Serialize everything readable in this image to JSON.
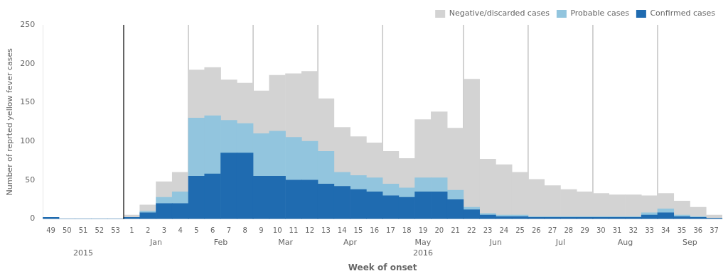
{
  "chart_data": {
    "type": "bar",
    "stacked": true,
    "categories": [
      "49",
      "50",
      "51",
      "52",
      "53",
      "1",
      "2",
      "3",
      "4",
      "5",
      "6",
      "7",
      "8",
      "9",
      "10",
      "11",
      "12",
      "13",
      "14",
      "15",
      "16",
      "17",
      "18",
      "19",
      "20",
      "21",
      "22",
      "23",
      "24",
      "25",
      "26",
      "27",
      "28",
      "29",
      "30",
      "31",
      "32",
      "33",
      "34",
      "35",
      "36",
      "37"
    ],
    "series": [
      {
        "name": "Confirmed cases",
        "color": "#1F6BB0",
        "values": [
          2,
          0,
          0,
          0,
          0,
          2,
          8,
          20,
          20,
          55,
          58,
          85,
          85,
          55,
          55,
          50,
          50,
          45,
          42,
          38,
          35,
          30,
          28,
          35,
          35,
          25,
          12,
          5,
          3,
          3,
          2,
          2,
          2,
          2,
          2,
          2,
          2,
          5,
          8,
          3,
          2,
          1
        ]
      },
      {
        "name": "Probable cases",
        "color": "#92C5DE",
        "values": [
          0,
          0,
          0,
          0,
          0,
          0,
          2,
          8,
          15,
          75,
          75,
          42,
          38,
          55,
          58,
          55,
          50,
          42,
          18,
          18,
          18,
          15,
          12,
          18,
          18,
          12,
          3,
          2,
          2,
          2,
          1,
          1,
          1,
          1,
          1,
          1,
          1,
          3,
          5,
          2,
          1,
          0
        ]
      },
      {
        "name": "Negative/discarded cases",
        "color": "#D3D3D3",
        "values": [
          0,
          0,
          0,
          0,
          0,
          3,
          8,
          20,
          25,
          62,
          62,
          52,
          52,
          55,
          72,
          82,
          90,
          68,
          58,
          50,
          45,
          42,
          38,
          75,
          85,
          80,
          165,
          70,
          65,
          55,
          48,
          40,
          35,
          32,
          30,
          28,
          28,
          22,
          20,
          18,
          12,
          4
        ]
      }
    ],
    "ylabel": "Number of reprted yellow fever cases",
    "xlabel": "Week of onset",
    "ylim": [
      0,
      250
    ],
    "yticks": [
      0,
      50,
      100,
      150,
      200,
      250
    ],
    "grid": false,
    "legend": "upper right",
    "annotations": [
      {
        "text": "Jan",
        "from": "1",
        "to": "4",
        "level": 1
      },
      {
        "text": "Feb",
        "from": "5",
        "to": "8",
        "level": 1
      },
      {
        "text": "Mar",
        "from": "9",
        "to": "12",
        "level": 1
      },
      {
        "text": "Apr",
        "from": "13",
        "to": "16",
        "level": 1
      },
      {
        "text": "May",
        "from": "17",
        "to": "21",
        "level": 1
      },
      {
        "text": "Jun",
        "from": "22",
        "to": "25",
        "level": 1
      },
      {
        "text": "Jul",
        "from": "26",
        "to": "29",
        "level": 1
      },
      {
        "text": "Aug",
        "from": "30",
        "to": "33",
        "level": 1
      },
      {
        "text": "Sep",
        "from": "34",
        "to": "37",
        "level": 1
      },
      {
        "text": "2015",
        "from": "49",
        "to": "53",
        "level": 2
      },
      {
        "text": "2016",
        "from": "1",
        "to": "37",
        "level": 2
      }
    ]
  }
}
